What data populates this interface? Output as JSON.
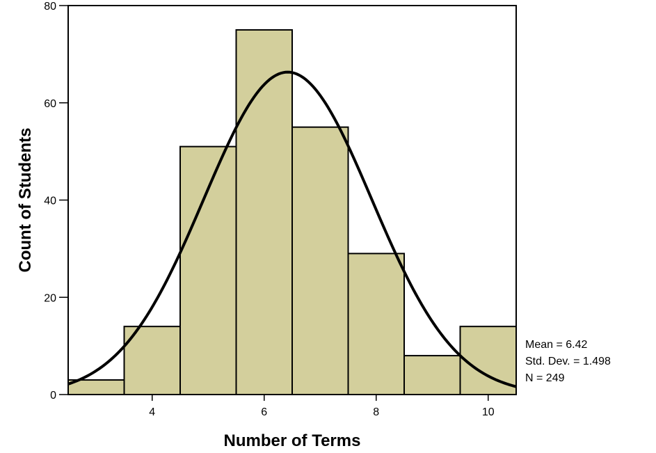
{
  "chart_data": {
    "type": "bar",
    "subtype": "histogram",
    "title": "",
    "xlabel": "Number of Terms",
    "ylabel": "Count of Students",
    "bin_width": 1,
    "bins": [
      {
        "center": 3,
        "count": 3
      },
      {
        "center": 4,
        "count": 14
      },
      {
        "center": 5,
        "count": 51
      },
      {
        "center": 6,
        "count": 75
      },
      {
        "center": 7,
        "count": 55
      },
      {
        "center": 8,
        "count": 29
      },
      {
        "center": 9,
        "count": 8
      },
      {
        "center": 10,
        "count": 14
      }
    ],
    "xlim": [
      2.5,
      10.5
    ],
    "ylim": [
      0,
      80
    ],
    "xticks": [
      4,
      6,
      8,
      10
    ],
    "yticks": [
      0,
      20,
      40,
      60,
      80
    ],
    "grid": false,
    "normal_curve": {
      "mean": 6.42,
      "std": 1.498,
      "n": 249
    },
    "bar_color": "#d3cf9c",
    "bar_edge_color": "#000000",
    "curve_color": "#000000",
    "stats": {
      "mean": "Mean = 6.42",
      "std": "Std. Dev. = 1.498",
      "n": "N = 249"
    }
  }
}
